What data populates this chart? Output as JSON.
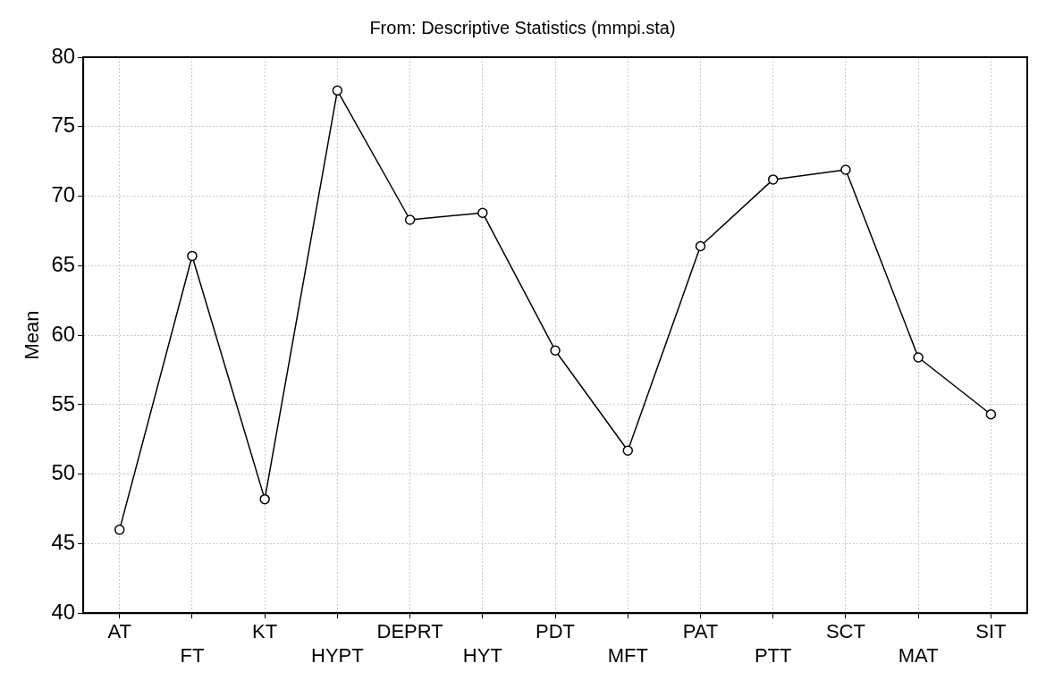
{
  "chart_data": {
    "type": "line",
    "title": "From: Descriptive Statistics (mmpi.sta)",
    "ylabel": "Mean",
    "categories": [
      "AT",
      "FT",
      "KT",
      "HYPT",
      "DEPRT",
      "HYT",
      "PDT",
      "MFT",
      "PAT",
      "PTT",
      "SCT",
      "MAT",
      "SIT"
    ],
    "series": [
      {
        "color": "#000000",
        "values": [
          46.0,
          65.7,
          48.2,
          77.6,
          68.3,
          68.8,
          58.9,
          51.7,
          66.4,
          71.2,
          71.9,
          58.4,
          54.3
        ]
      }
    ],
    "ylim": [
      40,
      80
    ],
    "yticks": [
      40,
      45,
      50,
      55,
      60,
      65,
      70,
      75,
      80
    ],
    "grid": true,
    "legend": false,
    "marker": "circle",
    "line_style": "solid"
  }
}
